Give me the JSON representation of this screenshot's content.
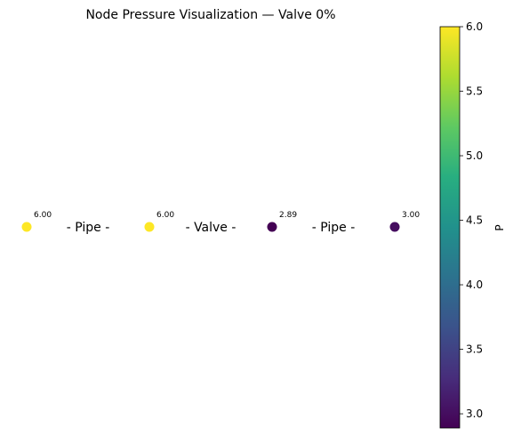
{
  "chart_data": {
    "type": "scatter",
    "title": "Node Pressure Visualization — Valve 0%",
    "nodes": [
      {
        "value": 6.0,
        "label": "6.00"
      },
      {
        "value": 6.0,
        "label": "6.00"
      },
      {
        "value": 2.89,
        "label": "2.89"
      },
      {
        "value": 3.0,
        "label": "3.00"
      }
    ],
    "edges": [
      {
        "label": "- Pipe -"
      },
      {
        "label": "- Valve -"
      },
      {
        "label": "- Pipe -"
      }
    ],
    "colorbar": {
      "label": "P",
      "colormap": "viridis",
      "range": [
        2.89,
        6.0
      ],
      "ticks": [
        3.0,
        3.5,
        4.0,
        4.5,
        5.0,
        5.5,
        6.0
      ],
      "tick_labels": [
        "3.0",
        "3.5",
        "4.0",
        "4.5",
        "5.0",
        "5.5",
        "6.0"
      ]
    },
    "grid": false,
    "axes_visible": false
  }
}
